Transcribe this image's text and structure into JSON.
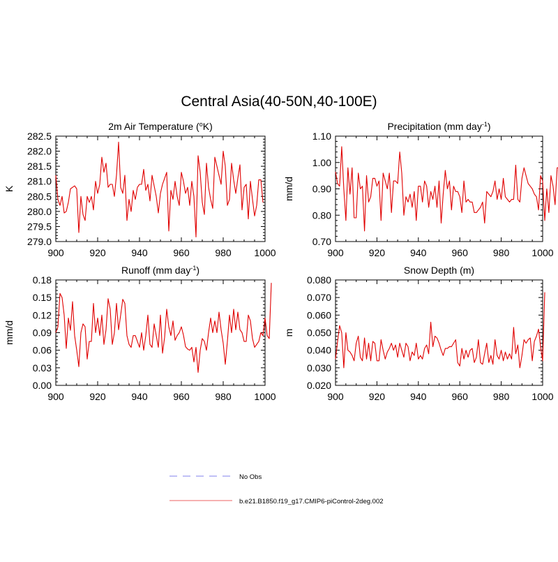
{
  "figure": {
    "title": "Central Asia(40-50N,40-100E)"
  },
  "legend": {
    "items": [
      {
        "label": "No Obs",
        "color": "#9a9af0",
        "style": "dashed"
      },
      {
        "label": "b.e21.B1850.f19_g17.CMIP6-piControl-2deg.002",
        "color": "#f08080",
        "style": "solid"
      }
    ]
  },
  "chart_data": [
    {
      "type": "line",
      "title": "2m Air Temperature (",
      "title_sup": "o",
      "title_suffix": "K)",
      "ylabel": "K",
      "xlim": [
        900,
        1000
      ],
      "ylim": [
        279.0,
        282.5
      ],
      "xticks": [
        900,
        920,
        940,
        960,
        980,
        1000
      ],
      "yticks": [
        "279.0",
        "279.5",
        "280.0",
        "280.5",
        "281.0",
        "281.5",
        "282.0",
        "282.5"
      ],
      "line_color": "#e00000",
      "x_start": 900,
      "values": [
        281.2,
        280.4,
        280.2,
        280.5,
        279.95,
        280.0,
        280.3,
        280.75,
        280.8,
        280.85,
        280.75,
        279.3,
        280.5,
        279.9,
        279.7,
        280.5,
        280.3,
        280.5,
        280.05,
        281.0,
        280.6,
        280.9,
        281.8,
        281.3,
        281.6,
        280.8,
        280.9,
        280.9,
        280.5,
        281.2,
        282.3,
        280.8,
        280.6,
        281.2,
        279.7,
        280.4,
        280.0,
        280.7,
        280.4,
        280.8,
        280.9,
        280.9,
        281.4,
        280.7,
        280.9,
        280.35,
        281.2,
        280.85,
        280.5,
        279.95,
        280.6,
        280.9,
        281.1,
        281.3,
        279.35,
        280.7,
        280.4,
        281.0,
        280.5,
        280.2,
        281.3,
        281.0,
        280.6,
        280.8,
        280.2,
        281.0,
        280.5,
        279.15,
        281.85,
        281.3,
        280.3,
        279.9,
        281.6,
        280.8,
        280.4,
        280.1,
        281.8,
        281.5,
        281.2,
        280.9,
        282.0,
        281.5,
        280.2,
        280.4,
        281.6,
        281.05,
        280.6,
        281.1,
        281.55,
        280.05,
        280.8,
        280.9,
        279.75,
        281.0,
        280.4,
        279.85,
        280.2,
        281.05,
        281.05,
        280.3
      ]
    },
    {
      "type": "line",
      "title": "Precipitation (mm day",
      "title_sup": "-1",
      "title_suffix": ")",
      "ylabel": "mm/d",
      "xlim": [
        900,
        1000
      ],
      "ylim": [
        0.7,
        1.1
      ],
      "xticks": [
        900,
        920,
        940,
        960,
        980,
        1000
      ],
      "yticks": [
        "0.70",
        "0.80",
        "0.90",
        "1.00",
        "1.10"
      ],
      "line_color": "#e00000",
      "x_start": 900,
      "values": [
        0.965,
        0.92,
        0.91,
        1.06,
        0.9,
        0.78,
        0.98,
        0.88,
        0.98,
        0.79,
        0.79,
        0.96,
        0.9,
        0.91,
        0.74,
        0.95,
        0.85,
        0.87,
        0.94,
        0.94,
        0.91,
        0.93,
        0.78,
        0.96,
        0.93,
        0.9,
        0.96,
        0.81,
        0.93,
        0.93,
        0.92,
        1.04,
        0.96,
        0.8,
        0.87,
        0.85,
        0.88,
        0.83,
        0.89,
        0.78,
        0.91,
        0.91,
        0.85,
        0.93,
        0.91,
        0.83,
        0.89,
        0.86,
        0.91,
        0.83,
        0.93,
        0.77,
        0.88,
        0.97,
        0.9,
        0.93,
        0.82,
        0.91,
        0.89,
        0.89,
        0.87,
        0.81,
        0.93,
        0.85,
        0.86,
        0.85,
        0.85,
        0.81,
        0.81,
        0.82,
        0.83,
        0.85,
        0.77,
        0.89,
        0.88,
        0.87,
        0.89,
        0.93,
        0.86,
        0.9,
        0.86,
        0.94,
        0.87,
        0.86,
        0.85,
        0.86,
        0.86,
        0.99,
        0.86,
        0.85,
        0.94,
        0.98,
        0.95,
        0.92,
        0.91,
        0.9,
        0.88,
        0.87,
        0.82,
        0.95,
        0.93,
        0.78,
        0.9,
        0.81,
        0.95,
        0.91,
        0.84,
        0.98,
        0.98
      ]
    },
    {
      "type": "line",
      "title": "Runoff (mm day",
      "title_sup": "-1",
      "title_suffix": ")",
      "ylabel": "mm/d",
      "xlim": [
        900,
        1000
      ],
      "ylim": [
        0.0,
        0.18
      ],
      "xticks": [
        900,
        920,
        940,
        960,
        980,
        1000
      ],
      "yticks": [
        "0.00",
        "0.03",
        "0.06",
        "0.09",
        "0.12",
        "0.15",
        "0.18"
      ],
      "line_color": "#e00000",
      "x_start": 900,
      "values": [
        0.09,
        0.1,
        0.157,
        0.15,
        0.12,
        0.063,
        0.115,
        0.094,
        0.143,
        0.085,
        0.06,
        0.032,
        0.09,
        0.105,
        0.1,
        0.045,
        0.075,
        0.075,
        0.14,
        0.09,
        0.115,
        0.085,
        0.12,
        0.07,
        0.095,
        0.148,
        0.13,
        0.07,
        0.09,
        0.14,
        0.095,
        0.12,
        0.147,
        0.14,
        0.085,
        0.07,
        0.065,
        0.085,
        0.085,
        0.075,
        0.065,
        0.09,
        0.06,
        0.085,
        0.12,
        0.07,
        0.065,
        0.105,
        0.085,
        0.065,
        0.12,
        0.055,
        0.082,
        0.13,
        0.1,
        0.085,
        0.11,
        0.077,
        0.085,
        0.09,
        0.1,
        0.086,
        0.066,
        0.062,
        0.06,
        0.065,
        0.04,
        0.065,
        0.022,
        0.06,
        0.08,
        0.075,
        0.06,
        0.09,
        0.115,
        0.09,
        0.11,
        0.09,
        0.125,
        0.095,
        0.072,
        0.036,
        0.075,
        0.12,
        0.09,
        0.13,
        0.095,
        0.125,
        0.095,
        0.09,
        0.075,
        0.075,
        0.12,
        0.11,
        0.08,
        0.065,
        0.07,
        0.075,
        0.09,
        0.085,
        0.115,
        0.085,
        0.08,
        0.175
      ]
    },
    {
      "type": "line",
      "title": "Snow Depth (m)",
      "title_sup": "",
      "title_suffix": "",
      "ylabel": "m",
      "xlim": [
        900,
        1000
      ],
      "ylim": [
        0.02,
        0.08
      ],
      "xticks": [
        900,
        920,
        940,
        960,
        980,
        1000
      ],
      "yticks": [
        "0.020",
        "0.030",
        "0.040",
        "0.050",
        "0.060",
        "0.070",
        "0.080"
      ],
      "line_color": "#e00000",
      "x_start": 900,
      "values": [
        0.035,
        0.045,
        0.054,
        0.05,
        0.03,
        0.05,
        0.04,
        0.039,
        0.037,
        0.034,
        0.044,
        0.048,
        0.036,
        0.034,
        0.047,
        0.035,
        0.044,
        0.034,
        0.045,
        0.044,
        0.034,
        0.034,
        0.046,
        0.04,
        0.035,
        0.039,
        0.041,
        0.044,
        0.04,
        0.043,
        0.036,
        0.044,
        0.04,
        0.036,
        0.044,
        0.042,
        0.034,
        0.039,
        0.037,
        0.044,
        0.035,
        0.037,
        0.035,
        0.041,
        0.043,
        0.038,
        0.056,
        0.042,
        0.048,
        0.047,
        0.044,
        0.04,
        0.037,
        0.041,
        0.041,
        0.042,
        0.042,
        0.044,
        0.046,
        0.033,
        0.031,
        0.041,
        0.035,
        0.04,
        0.036,
        0.04,
        0.041,
        0.033,
        0.036,
        0.046,
        0.033,
        0.032,
        0.038,
        0.044,
        0.033,
        0.037,
        0.032,
        0.046,
        0.037,
        0.035,
        0.04,
        0.034,
        0.039,
        0.035,
        0.038,
        0.035,
        0.053,
        0.038,
        0.043,
        0.03,
        0.037,
        0.046,
        0.044,
        0.046,
        0.047,
        0.034,
        0.045,
        0.048,
        0.052,
        0.042,
        0.034,
        0.073
      ]
    }
  ]
}
